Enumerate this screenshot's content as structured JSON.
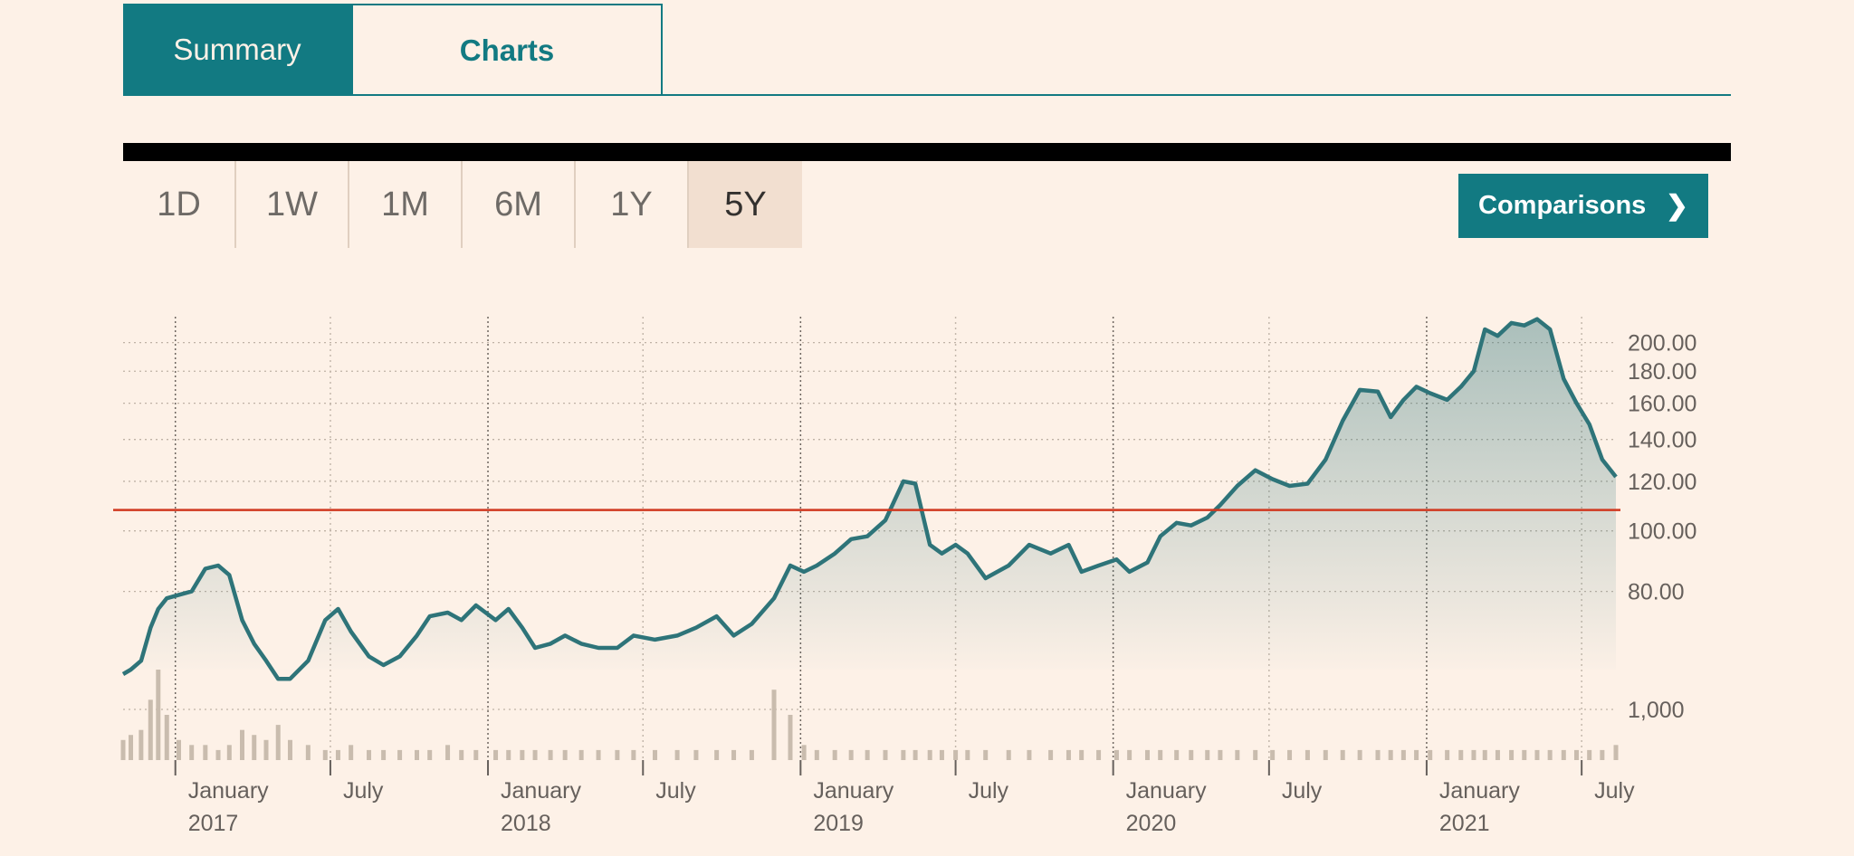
{
  "tabs": {
    "summary": "Summary",
    "charts": "Charts"
  },
  "ranges": [
    "1D",
    "1W",
    "1M",
    "6M",
    "1Y",
    "5Y"
  ],
  "active_range": "5Y",
  "comparisons": {
    "label": "Comparisons",
    "chevron": "❯"
  },
  "colors": {
    "line": "#2e7479",
    "reference": "#d0381f",
    "volume": "#c9bcae",
    "accent": "#127a82"
  },
  "chart_data": {
    "type": "area",
    "x_range": [
      "2016-11-01",
      "2021-08-10"
    ],
    "price_scale": "log",
    "ylim": [
      60,
      220
    ],
    "y_ticks": [
      {
        "value": 200,
        "label": "200.00"
      },
      {
        "value": 180,
        "label": "180.00"
      },
      {
        "value": 160,
        "label": "160.00"
      },
      {
        "value": 140,
        "label": "140.00"
      },
      {
        "value": 120,
        "label": "120.00"
      },
      {
        "value": 100,
        "label": "100.00"
      },
      {
        "value": 80,
        "label": "80.00"
      }
    ],
    "reference_line": 108,
    "x_ticks": [
      {
        "date": "2017-01-01",
        "label": "January",
        "year": "2017",
        "major": true
      },
      {
        "date": "2017-07-01",
        "label": "July",
        "major": false
      },
      {
        "date": "2018-01-01",
        "label": "January",
        "year": "2018",
        "major": true
      },
      {
        "date": "2018-07-01",
        "label": "July",
        "major": false
      },
      {
        "date": "2019-01-01",
        "label": "January",
        "year": "2019",
        "major": true
      },
      {
        "date": "2019-07-01",
        "label": "July",
        "major": false
      },
      {
        "date": "2020-01-01",
        "label": "January",
        "year": "2020",
        "major": true
      },
      {
        "date": "2020-07-01",
        "label": "July",
        "major": false
      },
      {
        "date": "2021-01-01",
        "label": "January",
        "year": "2021",
        "major": true
      },
      {
        "date": "2021-07-01",
        "label": "July",
        "major": false
      }
    ],
    "series": [
      {
        "x": [
          "2016-11-01",
          "2016-11-10",
          "2016-11-22",
          "2016-12-03",
          "2016-12-12",
          "2016-12-22",
          "2017-01-05",
          "2017-01-20",
          "2017-02-05",
          "2017-02-20",
          "2017-03-05",
          "2017-03-20",
          "2017-04-03",
          "2017-04-17",
          "2017-05-01",
          "2017-05-15",
          "2017-06-05",
          "2017-06-25",
          "2017-07-10",
          "2017-07-25",
          "2017-08-15",
          "2017-09-01",
          "2017-09-20",
          "2017-10-10",
          "2017-10-25",
          "2017-11-15",
          "2017-12-01",
          "2017-12-18",
          "2018-01-10",
          "2018-01-25",
          "2018-02-10",
          "2018-02-25",
          "2018-03-15",
          "2018-04-01",
          "2018-04-20",
          "2018-05-10",
          "2018-06-01",
          "2018-06-20",
          "2018-07-15",
          "2018-08-10",
          "2018-09-01",
          "2018-09-25",
          "2018-10-15",
          "2018-11-05",
          "2018-12-01",
          "2018-12-20",
          "2019-01-05",
          "2019-01-20",
          "2019-02-10",
          "2019-03-01",
          "2019-03-20",
          "2019-04-10",
          "2019-05-01",
          "2019-05-15",
          "2019-06-01",
          "2019-06-15",
          "2019-07-01",
          "2019-07-15",
          "2019-08-05",
          "2019-09-01",
          "2019-09-25",
          "2019-10-20",
          "2019-11-10",
          "2019-11-25",
          "2019-12-15",
          "2020-01-05",
          "2020-01-20",
          "2020-02-10",
          "2020-02-25",
          "2020-03-15",
          "2020-04-01",
          "2020-04-20",
          "2020-05-05",
          "2020-05-25",
          "2020-06-15",
          "2020-07-05",
          "2020-07-25",
          "2020-08-15",
          "2020-09-05",
          "2020-09-25",
          "2020-10-15",
          "2020-11-05",
          "2020-11-20",
          "2020-12-05",
          "2020-12-20",
          "2021-01-05",
          "2021-01-25",
          "2021-02-10",
          "2021-02-25",
          "2021-03-10",
          "2021-03-25",
          "2021-04-10",
          "2021-04-25",
          "2021-05-10",
          "2021-05-25",
          "2021-06-10",
          "2021-06-25",
          "2021-07-10",
          "2021-07-25",
          "2021-08-10"
        ],
        "y": [
          59,
          60,
          62,
          70,
          75,
          78,
          79,
          80,
          87,
          88,
          85,
          72,
          66,
          62,
          58,
          58,
          62,
          72,
          75,
          69,
          63,
          61,
          63,
          68,
          73,
          74,
          72,
          76,
          72,
          75,
          70,
          65,
          66,
          68,
          66,
          65,
          65,
          68,
          67,
          68,
          70,
          73,
          68,
          71,
          78,
          88,
          86,
          88,
          92,
          97,
          98,
          104,
          120,
          119,
          95,
          92,
          95,
          92,
          84,
          88,
          95,
          92,
          95,
          86,
          88,
          90,
          86,
          89,
          98,
          103,
          102,
          105,
          110,
          118,
          125,
          121,
          118,
          119,
          130,
          150,
          168,
          167,
          152,
          162,
          170,
          166,
          162,
          170,
          180,
          210,
          205,
          215,
          213,
          218,
          210,
          175,
          160,
          148,
          130,
          122
        ],
        "volume": [
          4,
          5,
          6,
          12,
          18,
          9,
          4,
          3,
          3,
          2,
          3,
          6,
          5,
          4,
          7,
          4,
          3,
          2,
          2,
          3,
          2,
          2,
          2,
          2,
          2,
          3,
          2,
          2,
          2,
          2,
          2,
          2,
          2,
          2,
          2,
          2,
          2,
          2,
          2,
          2,
          2,
          2,
          2,
          2,
          14,
          9,
          3,
          2,
          2,
          2,
          2,
          2,
          2,
          2,
          2,
          2,
          2,
          2,
          2,
          2,
          2,
          2,
          2,
          2,
          2,
          2,
          2,
          2,
          2,
          2,
          2,
          2,
          2,
          2,
          2,
          2,
          2,
          2,
          2,
          2,
          2,
          2,
          2,
          2,
          2,
          2,
          2,
          2,
          2,
          2,
          2,
          2,
          2,
          2,
          2,
          2,
          2,
          2,
          2,
          3
        ],
        "volume_tick_label": "1,000"
      }
    ]
  }
}
